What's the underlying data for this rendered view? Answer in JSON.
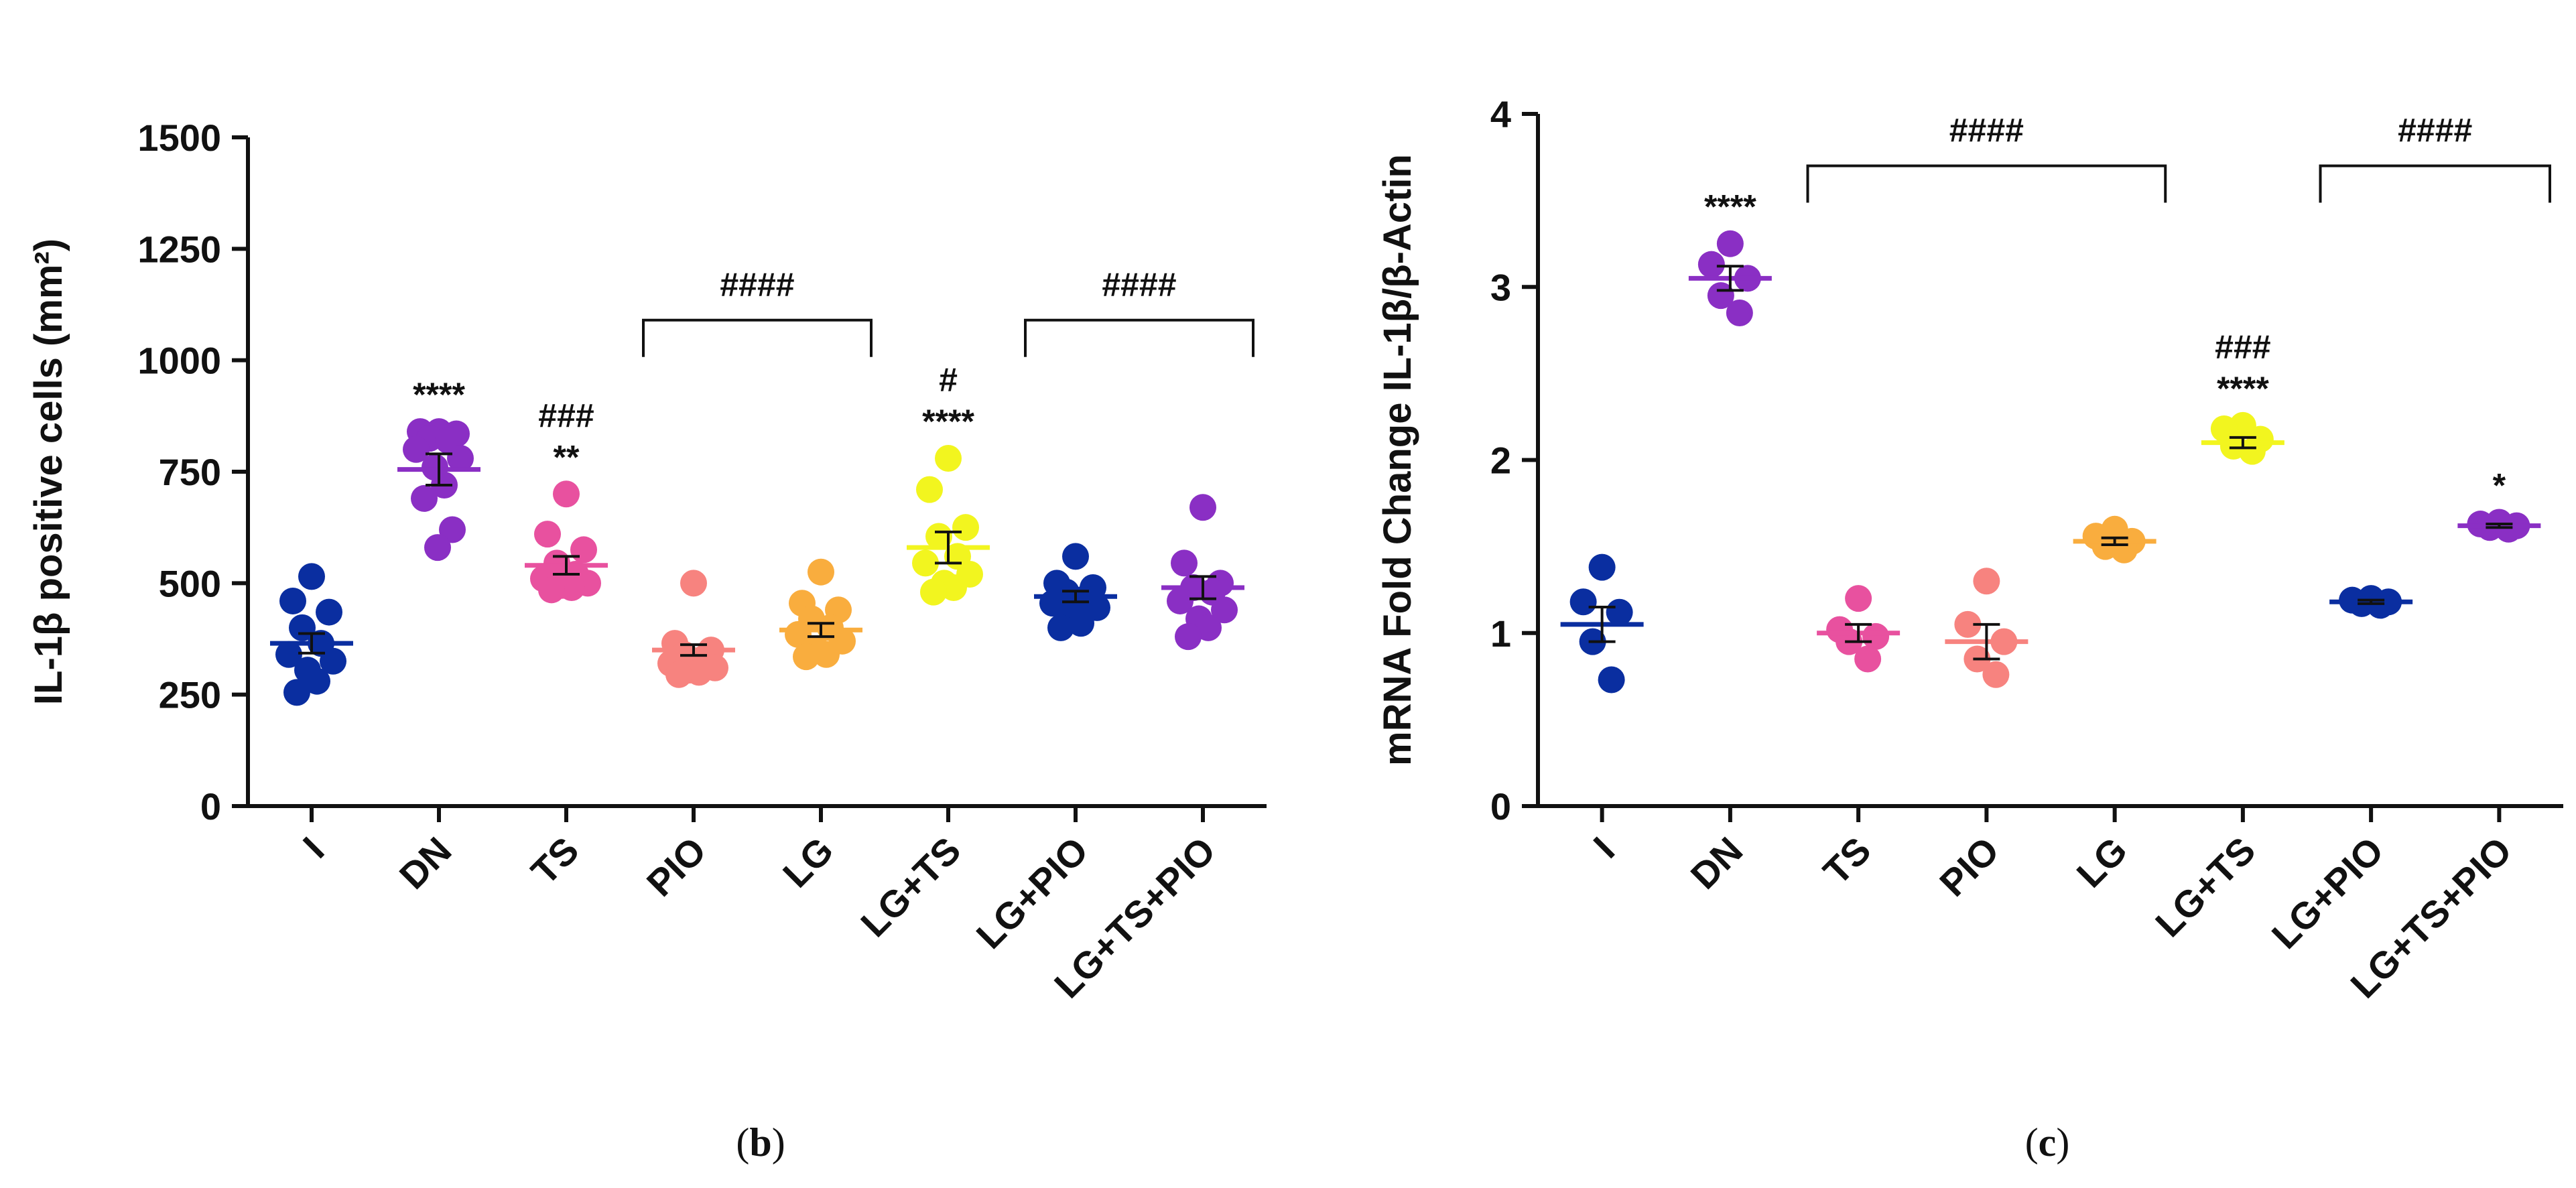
{
  "chart_data": [
    {
      "type": "scatter",
      "panel": "b",
      "caption": "(b)",
      "caption_open": "(",
      "caption_letter": "b",
      "caption_close": ")",
      "ylabel": "IL-1β positive cells (mm²)",
      "ylim": [
        0,
        1500
      ],
      "yticks": [
        0,
        250,
        500,
        750,
        1000,
        1250,
        1500
      ],
      "grid": false,
      "categories": [
        "I",
        "DN",
        "TS",
        "PIO",
        "LG",
        "LG+TS",
        "LG+PIO",
        "LG+TS+PIO"
      ],
      "colors": [
        "#0a2ea0",
        "#8a2fc4",
        "#e8519f",
        "#f7837f",
        "#f9ad3e",
        "#f2f51f",
        "#0a2ea0",
        "#8a2fc4"
      ],
      "groups": [
        {
          "category": "I",
          "mean": 365,
          "sem": 22,
          "points": [
            515,
            460,
            435,
            400,
            365,
            340,
            325,
            305,
            280,
            255
          ]
        },
        {
          "category": "DN",
          "mean": 755,
          "sem": 35,
          "points": [
            840,
            840,
            835,
            825,
            820,
            800,
            780,
            760,
            720,
            690,
            620,
            580
          ]
        },
        {
          "category": "TS",
          "mean": 540,
          "sem": 20,
          "points": [
            700,
            610,
            575,
            545,
            520,
            510,
            500,
            495,
            490,
            485
          ]
        },
        {
          "category": "PIO",
          "mean": 350,
          "sem": 12,
          "points": [
            500,
            365,
            350,
            340,
            330,
            320,
            310,
            305,
            300,
            295
          ]
        },
        {
          "category": "LG",
          "mean": 395,
          "sem": 15,
          "points": [
            525,
            455,
            440,
            420,
            400,
            385,
            370,
            350,
            340,
            335
          ]
        },
        {
          "category": "LG+TS",
          "mean": 580,
          "sem": 35,
          "points": [
            780,
            710,
            625,
            605,
            560,
            545,
            520,
            500,
            490,
            480
          ]
        },
        {
          "category": "LG+PIO",
          "mean": 470,
          "sem": 12,
          "points": [
            560,
            500,
            490,
            480,
            465,
            455,
            445,
            430,
            410,
            400
          ]
        },
        {
          "category": "LG+TS+PIO",
          "mean": 490,
          "sem": 25,
          "points": [
            670,
            545,
            500,
            490,
            480,
            460,
            440,
            420,
            400,
            380
          ]
        }
      ],
      "annotations": [
        {
          "category": "DN",
          "lines": [
            "****"
          ]
        },
        {
          "category": "TS",
          "lines": [
            "###",
            "**"
          ]
        },
        {
          "category": "LG+TS",
          "lines": [
            "#",
            "****"
          ]
        }
      ],
      "brackets": [
        {
          "from": "PIO",
          "to": "LG",
          "y": 1090,
          "label": "####"
        },
        {
          "from": "LG+PIO",
          "to": "LG+TS+PIO",
          "y": 1090,
          "label": "####"
        }
      ]
    },
    {
      "type": "scatter",
      "panel": "c",
      "caption": "(c)",
      "caption_open": "(",
      "caption_letter": "c",
      "caption_close": ")",
      "ylabel": "mRNA Fold Change IL-1β/β-Actin",
      "ylim": [
        0,
        4
      ],
      "yticks": [
        0,
        1,
        2,
        3,
        4
      ],
      "grid": false,
      "categories": [
        "I",
        "DN",
        "TS",
        "PIO",
        "LG",
        "LG+TS",
        "LG+PIO",
        "LG+TS+PIO"
      ],
      "colors": [
        "#0a2ea0",
        "#8a2fc4",
        "#e8519f",
        "#f7837f",
        "#f9ad3e",
        "#f2f51f",
        "#0a2ea0",
        "#8a2fc4"
      ],
      "groups": [
        {
          "category": "I",
          "mean": 1.05,
          "sem": 0.1,
          "points": [
            1.38,
            1.18,
            1.12,
            0.95,
            0.73
          ]
        },
        {
          "category": "DN",
          "mean": 3.05,
          "sem": 0.07,
          "points": [
            3.25,
            3.13,
            3.05,
            2.95,
            2.85
          ]
        },
        {
          "category": "TS",
          "mean": 1.0,
          "sem": 0.05,
          "points": [
            1.2,
            1.02,
            0.98,
            0.95,
            0.85
          ]
        },
        {
          "category": "PIO",
          "mean": 0.95,
          "sem": 0.1,
          "points": [
            1.3,
            1.05,
            0.95,
            0.85,
            0.76
          ]
        },
        {
          "category": "LG",
          "mean": 1.53,
          "sem": 0.02,
          "points": [
            1.6,
            1.56,
            1.53,
            1.5,
            1.48
          ]
        },
        {
          "category": "LG+TS",
          "mean": 2.1,
          "sem": 0.03,
          "points": [
            2.2,
            2.18,
            2.12,
            2.08,
            2.05
          ]
        },
        {
          "category": "LG+PIO",
          "mean": 1.18,
          "sem": 0.01,
          "points": [
            1.2,
            1.19,
            1.18,
            1.17,
            1.16
          ]
        },
        {
          "category": "LG+TS+PIO",
          "mean": 1.62,
          "sem": 0.01,
          "points": [
            1.64,
            1.63,
            1.62,
            1.61,
            1.6
          ]
        }
      ],
      "annotations": [
        {
          "category": "DN",
          "lines": [
            "****"
          ]
        },
        {
          "category": "LG+TS",
          "lines": [
            "###",
            "****"
          ]
        },
        {
          "category": "LG+TS+PIO",
          "lines": [
            "*"
          ]
        }
      ],
      "brackets": [
        {
          "from": "TS",
          "to": "LG",
          "y": 3.7,
          "label": "####"
        },
        {
          "from": "LG+PIO",
          "to": "LG+TS+PIO",
          "y": 3.7,
          "label": "####"
        }
      ]
    }
  ]
}
